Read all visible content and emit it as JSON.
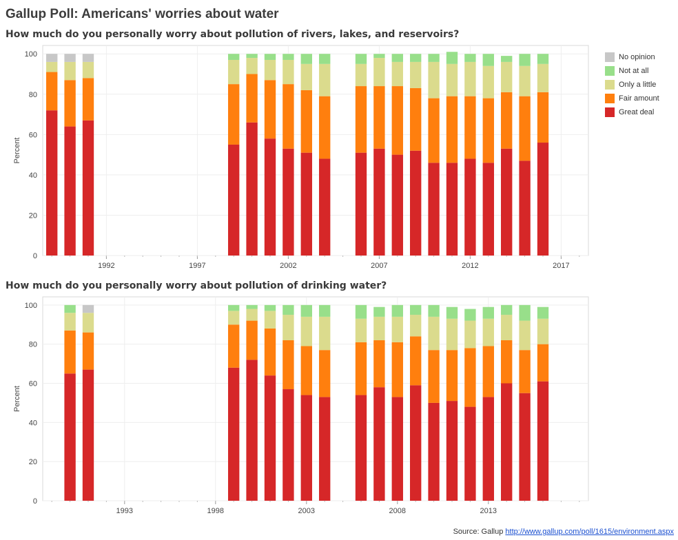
{
  "title": "Gallup Poll: Americans' worries about water",
  "source": {
    "label": "Source: Gallup",
    "url": "http://www.gallup.com/poll/1615/environment.aspx"
  },
  "legend": [
    {
      "name": "No opinion",
      "color": "#c7c7c7"
    },
    {
      "name": "Not at all",
      "color": "#98df8a"
    },
    {
      "name": "Only a little",
      "color": "#dbdb8d"
    },
    {
      "name": "Fair amount",
      "color": "#ff7f0e"
    },
    {
      "name": "Great deal",
      "color": "#d62728"
    }
  ],
  "chart_data": [
    {
      "type": "bar",
      "stacked": true,
      "title": "How much do you personally worry about pollution of rivers, lakes, and reservoirs?",
      "ylabel": "Percent",
      "ylim": [
        0,
        100
      ],
      "yticks": [
        0,
        20,
        40,
        60,
        80,
        100
      ],
      "xlim": [
        1989,
        2018
      ],
      "xticks": [
        1992,
        1997,
        2002,
        2007,
        2012,
        2017
      ],
      "grid": true,
      "legend_position": "right",
      "x": [
        1989,
        1990,
        1991,
        1999,
        2000,
        2001,
        2002,
        2003,
        2004,
        2006,
        2007,
        2008,
        2009,
        2010,
        2011,
        2012,
        2013,
        2014,
        2015,
        2016
      ],
      "series": [
        {
          "name": "Great deal",
          "color": "#d62728",
          "values": [
            72,
            64,
            67,
            55,
            66,
            58,
            53,
            51,
            48,
            51,
            53,
            50,
            52,
            46,
            46,
            48,
            46,
            53,
            47,
            56
          ]
        },
        {
          "name": "Fair amount",
          "color": "#ff7f0e",
          "values": [
            19,
            23,
            21,
            30,
            24,
            29,
            32,
            31,
            31,
            33,
            31,
            34,
            31,
            32,
            33,
            31,
            32,
            28,
            32,
            25
          ]
        },
        {
          "name": "Only a little",
          "color": "#dbdb8d",
          "values": [
            5,
            9,
            8,
            12,
            8,
            10,
            12,
            13,
            16,
            11,
            14,
            12,
            13,
            18,
            16,
            17,
            16,
            15,
            15,
            14
          ]
        },
        {
          "name": "Not at all",
          "color": "#98df8a",
          "values": [
            0,
            0,
            0,
            3,
            2,
            3,
            3,
            5,
            5,
            5,
            2,
            4,
            4,
            4,
            6,
            4,
            6,
            3,
            6,
            5
          ]
        },
        {
          "name": "No opinion",
          "color": "#c7c7c7",
          "values": [
            4,
            4,
            4,
            0,
            0,
            0,
            0,
            0,
            0,
            0,
            0,
            0,
            0,
            0,
            0,
            0,
            0,
            0,
            0,
            0
          ]
        }
      ]
    },
    {
      "type": "bar",
      "stacked": true,
      "title": "How much do you personally worry about pollution of drinking water?",
      "ylabel": "Percent",
      "ylim": [
        0,
        100
      ],
      "yticks": [
        0,
        20,
        40,
        60,
        80,
        100
      ],
      "xlim": [
        1989,
        2018
      ],
      "xticks": [
        1993,
        1998,
        2003,
        2008,
        2013
      ],
      "grid": true,
      "legend_position": "right",
      "x": [
        1990,
        1991,
        1999,
        2000,
        2001,
        2002,
        2003,
        2004,
        2006,
        2007,
        2008,
        2009,
        2010,
        2011,
        2012,
        2013,
        2014,
        2015,
        2016
      ],
      "series": [
        {
          "name": "Great deal",
          "color": "#d62728",
          "values": [
            65,
            67,
            68,
            72,
            64,
            57,
            54,
            53,
            54,
            58,
            53,
            59,
            50,
            51,
            48,
            53,
            60,
            55,
            61
          ]
        },
        {
          "name": "Fair amount",
          "color": "#ff7f0e",
          "values": [
            22,
            19,
            22,
            20,
            24,
            25,
            25,
            24,
            27,
            24,
            28,
            25,
            27,
            26,
            30,
            26,
            22,
            22,
            19
          ]
        },
        {
          "name": "Only a little",
          "color": "#dbdb8d",
          "values": [
            9,
            10,
            7,
            6,
            9,
            13,
            15,
            17,
            12,
            12,
            13,
            11,
            17,
            16,
            14,
            14,
            13,
            15,
            13
          ]
        },
        {
          "name": "Not at all",
          "color": "#98df8a",
          "values": [
            4,
            0,
            3,
            2,
            3,
            5,
            6,
            6,
            7,
            5,
            6,
            5,
            6,
            6,
            6,
            6,
            5,
            8,
            6
          ]
        },
        {
          "name": "No opinion",
          "color": "#c7c7c7",
          "values": [
            0,
            4,
            0,
            0,
            0,
            0,
            0,
            0,
            0,
            0,
            0,
            0,
            0,
            0,
            0,
            0,
            0,
            0,
            0
          ]
        }
      ]
    }
  ]
}
